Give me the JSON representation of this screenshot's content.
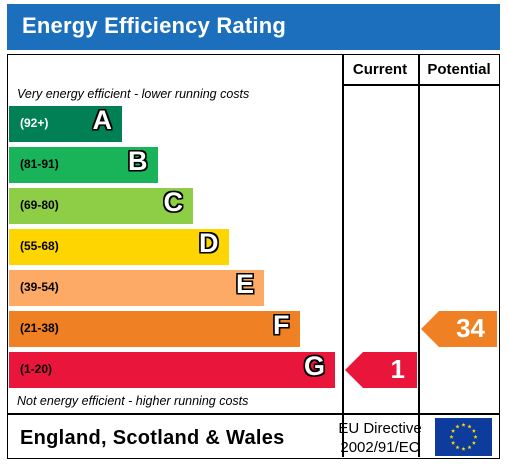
{
  "title": "Energy Efficiency Rating",
  "headers": {
    "current": "Current",
    "potential": "Potential"
  },
  "captions": {
    "top": "Very energy efficient - lower running costs",
    "bottom": "Not energy efficient - higher running costs"
  },
  "footer": {
    "country": "England, Scotland & Wales",
    "directive_line1": "EU Directive",
    "directive_line2": "2002/91/EC"
  },
  "colors": {
    "title_bg": "#1c6fbd",
    "A": "#008054",
    "B": "#19b459",
    "C": "#8dce46",
    "D": "#ffd500",
    "E": "#fcaa65",
    "F": "#ef8023",
    "G": "#e9153b",
    "eu_blue": "#0e3c9c",
    "eu_star": "#ffdd00"
  },
  "chart_data": {
    "type": "bar",
    "categories": [
      "A",
      "B",
      "C",
      "D",
      "E",
      "F",
      "G"
    ],
    "ranges": [
      "(92+)",
      "(81-91)",
      "(69-80)",
      "(55-68)",
      "(39-54)",
      "(21-38)",
      "(1-20)"
    ],
    "series": [
      {
        "name": "Current",
        "value": 1,
        "band": "G"
      },
      {
        "name": "Potential",
        "value": 34,
        "band": "F"
      }
    ]
  }
}
